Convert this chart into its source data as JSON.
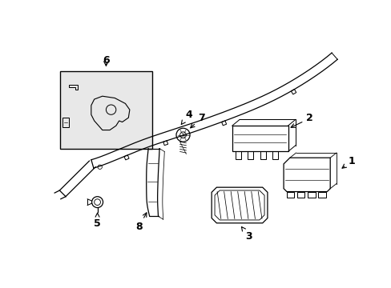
{
  "bg_color": "#ffffff",
  "line_color": "#000000",
  "figsize": [
    4.89,
    3.6
  ],
  "dpi": 100,
  "box6_bg": "#e8e8e8"
}
